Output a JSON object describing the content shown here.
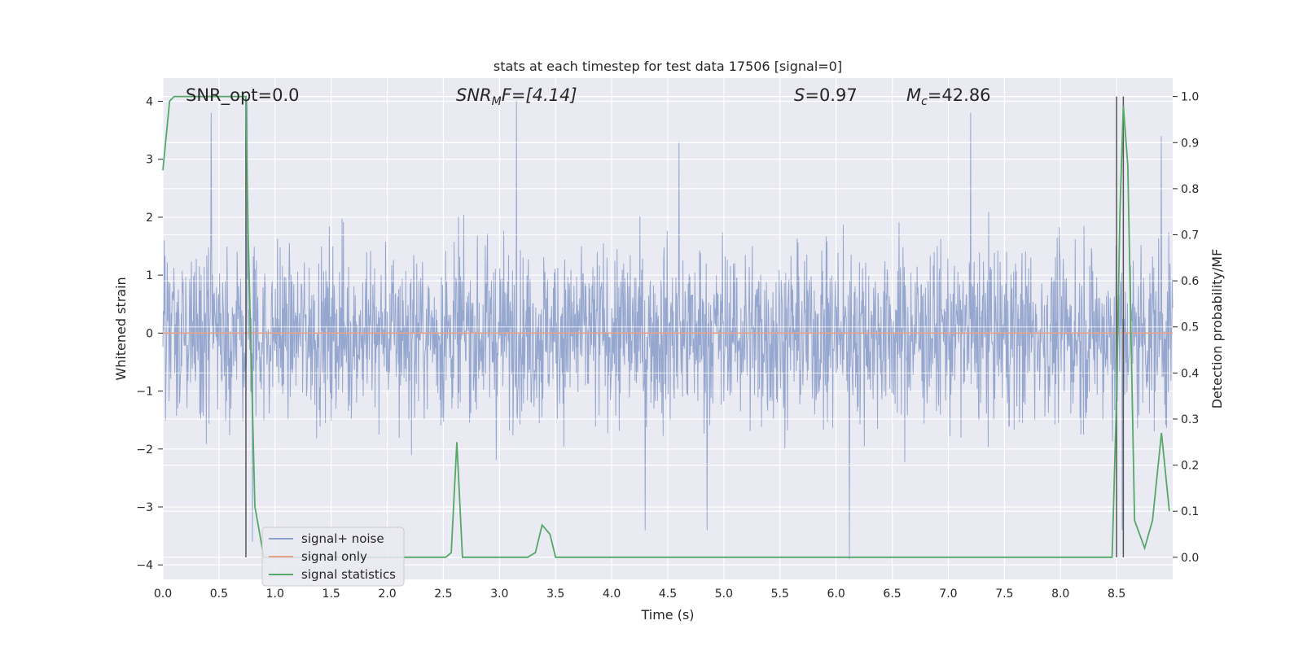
{
  "chart_data": {
    "type": "line",
    "title": "stats at each timestep for test data 17506 [signal=0]",
    "xlabel": "Time (s)",
    "ylabel": "Whitened strain",
    "y2label": "Detection probability/MF",
    "xlim": [
      0.0,
      9.0
    ],
    "ylim": [
      -4.25,
      4.4
    ],
    "y2lim": [
      -0.048,
      1.04
    ],
    "xticks": [
      "0.0",
      "0.5",
      "1.0",
      "1.5",
      "2.0",
      "2.5",
      "3.0",
      "3.5",
      "4.0",
      "4.5",
      "5.0",
      "5.5",
      "6.0",
      "6.5",
      "7.0",
      "7.5",
      "8.0",
      "8.5"
    ],
    "yticks": [
      "4",
      "3",
      "2",
      "1",
      "0",
      "−1",
      "−2",
      "−3",
      "−4"
    ],
    "y2ticks": [
      "1.0",
      "0.9",
      "0.8",
      "0.7",
      "0.6",
      "0.5",
      "0.4",
      "0.3",
      "0.2",
      "0.1",
      "0.0"
    ],
    "grid": true,
    "legend_position": "lower-left",
    "annotations": {
      "snr_opt": "SNR_opt=0.0",
      "snr_mf_prefix": "SNR",
      "snr_mf_sub": "M",
      "snr_mf_suffix": "F=[4.14]",
      "s_var": "S",
      "s_value": "=0.97",
      "mc_var": "M",
      "mc_sub": "c",
      "mc_value": "=42.86"
    },
    "vertical_lines_x": [
      0.74,
      8.5,
      8.56
    ],
    "series": [
      {
        "name": "signal+ noise",
        "color": "#8da0cb",
        "kind": "noise",
        "notable_peaks": [
          [
            0.43,
            3.8
          ],
          [
            0.75,
            4.0
          ],
          [
            3.15,
            4.0
          ],
          [
            4.6,
            3.3
          ],
          [
            7.2,
            3.8
          ],
          [
            8.55,
            3.3
          ],
          [
            8.9,
            3.4
          ],
          [
            0.8,
            -3.6
          ],
          [
            4.3,
            -3.4
          ],
          [
            4.85,
            -3.4
          ],
          [
            6.12,
            -3.9
          ],
          [
            8.55,
            -3.4
          ]
        ]
      },
      {
        "name": "signal only",
        "color": "#e5a48a",
        "kind": "flat",
        "value": 0
      },
      {
        "name": "signal statistics",
        "color": "#55a868",
        "kind": "prob",
        "x": [
          0.0,
          0.06,
          0.1,
          0.15,
          0.2,
          0.3,
          0.4,
          0.5,
          0.6,
          0.7,
          0.74,
          0.76,
          0.82,
          0.9,
          1.0,
          1.5,
          2.0,
          2.4,
          2.52,
          2.57,
          2.62,
          2.67,
          2.72,
          3.0,
          3.25,
          3.32,
          3.38,
          3.45,
          3.5,
          3.55,
          3.62,
          4.0,
          5.0,
          6.0,
          7.0,
          8.0,
          8.46,
          8.5,
          8.53,
          8.56,
          8.6,
          8.66,
          8.75,
          8.82,
          8.9,
          8.97
        ],
        "y": [
          0.84,
          0.99,
          1.0,
          1.0,
          1.0,
          1.0,
          1.0,
          1.0,
          1.0,
          1.0,
          1.0,
          0.7,
          0.11,
          0.0,
          0.0,
          0.0,
          0.0,
          0.0,
          0.0,
          0.01,
          0.25,
          0.0,
          0.0,
          0.0,
          0.0,
          0.01,
          0.07,
          0.05,
          0.0,
          0.0,
          0.0,
          0.0,
          0.0,
          0.0,
          0.0,
          0.0,
          0.0,
          0.35,
          0.75,
          0.98,
          0.85,
          0.08,
          0.02,
          0.08,
          0.27,
          0.1
        ]
      }
    ]
  }
}
